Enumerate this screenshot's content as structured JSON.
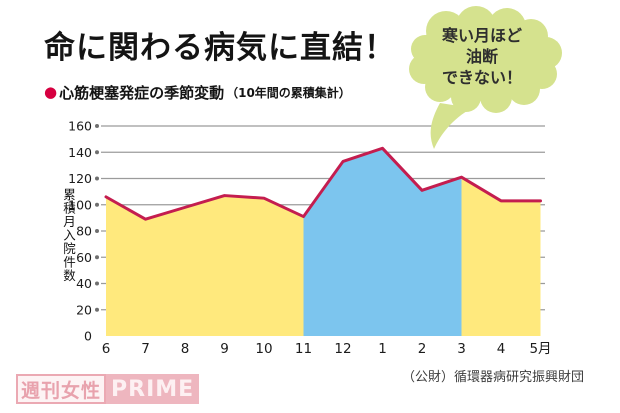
{
  "page": {
    "title": "命に関わる病気に直結！",
    "subtitle": {
      "bullet": "●",
      "main": "心筋梗塞発症の季節変動",
      "note": "（10年間の累積集計）"
    },
    "bubble": {
      "lines": [
        "寒い月ほど",
        "油断",
        "できない！"
      ],
      "fill_color": "#d5e28e",
      "text_color": "#2e2e2e"
    },
    "source": "（公財）循環器病研究振興財団",
    "watermark": {
      "left": "週刊女性",
      "right": "PRIME"
    }
  },
  "chart_data": {
    "type": "area",
    "title": "心筋梗塞発症の季節変動（10年間の累積集計）",
    "xlabel": "",
    "ylabel": "累積月入院件数",
    "categories": [
      "6",
      "7",
      "8",
      "9",
      "10",
      "11",
      "12",
      "1",
      "2",
      "3",
      "4",
      "5月"
    ],
    "values": [
      106,
      89,
      98,
      107,
      105,
      91,
      133,
      143,
      111,
      121,
      103,
      103
    ],
    "ylim": [
      0,
      160
    ],
    "ytick_step": 20,
    "grid": true,
    "legend": "none",
    "cold_segment": {
      "from_index": 5,
      "to_index": 9,
      "from_label": "11",
      "to_label": "3"
    },
    "colors": {
      "area_warm": "#ffe97d",
      "area_cold": "#7cc5ee",
      "line": "#c41d4f",
      "grid": "#9b9b9b",
      "tick_dot": "#6f6f6f",
      "tick_text": "#1c1c1c"
    }
  }
}
